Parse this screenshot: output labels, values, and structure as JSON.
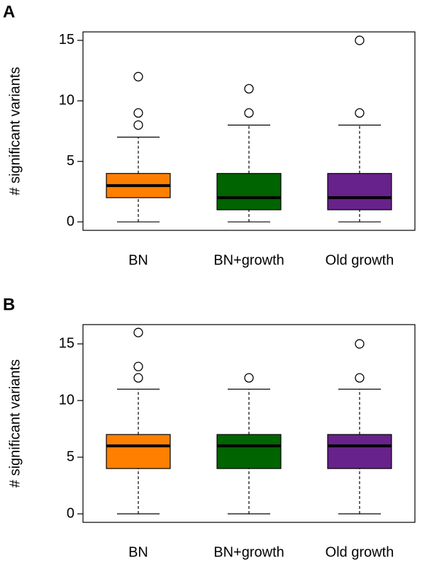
{
  "chart_data": [
    {
      "type": "box",
      "panel_label": "A",
      "ylabel": "# significant variants",
      "categories": [
        "BN",
        "BN+growth",
        "Old growth"
      ],
      "colors": [
        "#ff7f00",
        "#006400",
        "#68228b"
      ],
      "boxes": [
        {
          "whislo": 0,
          "q1": 2,
          "med": 3,
          "q3": 4,
          "whishi": 7,
          "fliers": [
            8,
            9,
            12
          ]
        },
        {
          "whislo": 0,
          "q1": 1,
          "med": 2,
          "q3": 4,
          "whishi": 8,
          "fliers": [
            9,
            11
          ]
        },
        {
          "whislo": 0,
          "q1": 1,
          "med": 2,
          "q3": 4,
          "whishi": 8,
          "fliers": [
            9,
            15
          ]
        }
      ],
      "ylim": [
        -0.7,
        15.7
      ],
      "yticks": [
        0,
        5,
        10,
        15
      ]
    },
    {
      "type": "box",
      "panel_label": "B",
      "ylabel": "# significant variants",
      "categories": [
        "BN",
        "BN+growth",
        "Old growth"
      ],
      "colors": [
        "#ff7f00",
        "#006400",
        "#68228b"
      ],
      "boxes": [
        {
          "whislo": 0,
          "q1": 4,
          "med": 6,
          "q3": 7,
          "whishi": 11,
          "fliers": [
            12,
            13,
            16
          ]
        },
        {
          "whislo": 0,
          "q1": 4,
          "med": 6,
          "q3": 7,
          "whishi": 11,
          "fliers": [
            12
          ]
        },
        {
          "whislo": 0,
          "q1": 4,
          "med": 6,
          "q3": 7,
          "whishi": 11,
          "fliers": [
            12,
            15
          ]
        }
      ],
      "ylim": [
        -0.75,
        16.7
      ],
      "yticks": [
        0,
        5,
        10,
        15
      ]
    }
  ]
}
